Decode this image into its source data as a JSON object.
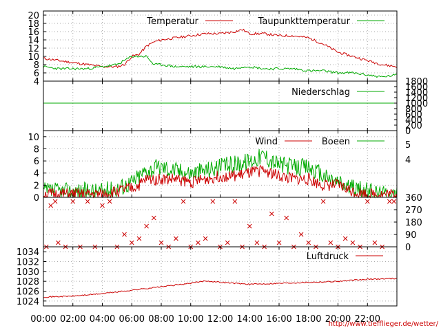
{
  "colors": {
    "red": "#cc0000",
    "green": "#00aa00",
    "grid": "#aaaaaa",
    "axis": "#000000",
    "footer": "#cc0000"
  },
  "footer_text": "http://www.tiefflieger.de/wetter/",
  "chart_data": [
    {
      "id": "temperature",
      "type": "line",
      "title": "",
      "xlabel": "",
      "ylabel": "",
      "ylim": [
        4,
        21
      ],
      "y_ticks": [
        4,
        6,
        8,
        10,
        12,
        14,
        16,
        18,
        20
      ],
      "grid": true,
      "legend_placement": "top",
      "x": [
        0,
        1,
        2,
        3,
        4,
        5,
        5.5,
        6,
        6.5,
        7,
        7.5,
        8,
        9,
        10,
        11,
        12,
        13,
        13.5,
        14,
        15,
        16,
        17,
        18,
        19,
        20,
        21,
        22,
        23,
        24
      ],
      "series": [
        {
          "name": "Temperatur",
          "color": "#cc0000",
          "values": [
            9.5,
            9,
            8.5,
            8,
            7.5,
            7.5,
            8,
            10,
            10.5,
            12.5,
            13.5,
            14,
            14.5,
            15,
            15.5,
            15.5,
            16,
            16.5,
            15.5,
            15.5,
            15,
            15,
            14.5,
            13,
            11,
            10,
            9,
            8,
            7.5
          ]
        },
        {
          "name": "Taupunkttemperatur",
          "color": "#00aa00",
          "values": [
            7.5,
            7,
            7,
            7,
            7.5,
            8,
            9,
            10,
            10,
            10,
            8,
            8,
            7.5,
            7.5,
            7.5,
            7.5,
            7,
            7.5,
            7.5,
            7,
            7,
            7,
            6.5,
            6.5,
            6,
            6,
            5.5,
            5,
            5.5
          ]
        }
      ]
    },
    {
      "id": "precipitation",
      "type": "line",
      "title": "",
      "ylim": [
        0,
        1800
      ],
      "y_ticks": [
        0,
        200,
        400,
        600,
        800,
        1000,
        1200,
        1400,
        1600,
        1800
      ],
      "grid": false,
      "legend_placement": "top",
      "x": [
        0,
        24
      ],
      "series": [
        {
          "name": "Niederschlag",
          "color": "#00aa00",
          "values": [
            1000,
            1000
          ]
        }
      ]
    },
    {
      "id": "wind",
      "type": "line",
      "title": "",
      "ylim": [
        0,
        11
      ],
      "y_ticks": [
        0,
        2,
        4,
        6,
        8,
        10
      ],
      "grid": true,
      "legend_placement": "top",
      "right_axis_labels": [
        "5",
        "4"
      ],
      "x": [
        0,
        1,
        2,
        3,
        4,
        5,
        6,
        6.5,
        7,
        8,
        9,
        10,
        11,
        12,
        13,
        14,
        15,
        15.5,
        16,
        17,
        18,
        19,
        20,
        21,
        22,
        23,
        24
      ],
      "series": [
        {
          "name": "Wind",
          "color": "#cc0000",
          "values": [
            0.5,
            0.5,
            0.5,
            0.5,
            0.5,
            1,
            1.5,
            2,
            3,
            3,
            3,
            2.5,
            3,
            3.5,
            3.5,
            4,
            4.5,
            4,
            3.5,
            3,
            3,
            2,
            2,
            1,
            0.5,
            0.5,
            0.5
          ]
        },
        {
          "name": "Boeen",
          "color": "#00aa00",
          "values": [
            1,
            1,
            1,
            1,
            1,
            1.5,
            2.5,
            3.5,
            4.5,
            5,
            4.5,
            4,
            4.5,
            5,
            5.5,
            6,
            7,
            6,
            5.5,
            5,
            5,
            3.5,
            2.5,
            1.5,
            1,
            0.5,
            0.5
          ]
        }
      ]
    },
    {
      "id": "wind-direction",
      "type": "scatter",
      "title": "",
      "ylim": [
        0,
        360
      ],
      "y_ticks": [
        0,
        90,
        180,
        270,
        360
      ],
      "grid": true,
      "legend_placement": "none",
      "x": [
        0.2,
        0.5,
        0.8,
        1,
        1.5,
        2,
        2.5,
        3,
        3.5,
        4,
        4.5,
        5,
        5.5,
        6,
        6.5,
        7,
        7.5,
        8,
        8.5,
        9,
        9.5,
        10,
        10.5,
        11,
        11.5,
        12,
        12.5,
        13,
        13.5,
        14,
        14.5,
        15,
        15.5,
        16,
        16.5,
        17,
        17.5,
        18,
        18.5,
        19,
        19.5,
        20,
        20.5,
        21,
        21.5,
        22,
        22.5,
        23,
        23.5,
        23.8
      ],
      "series": [
        {
          "name": "",
          "color": "#cc0000",
          "values": [
            0,
            300,
            330,
            30,
            0,
            330,
            0,
            330,
            0,
            300,
            330,
            0,
            90,
            30,
            60,
            150,
            210,
            30,
            0,
            60,
            330,
            0,
            30,
            60,
            330,
            0,
            30,
            330,
            0,
            150,
            30,
            0,
            240,
            30,
            210,
            0,
            90,
            30,
            0,
            330,
            30,
            0,
            60,
            30,
            0,
            330,
            30,
            0,
            330,
            330
          ]
        }
      ]
    },
    {
      "id": "pressure",
      "type": "line",
      "title": "",
      "ylim": [
        1023,
        1035
      ],
      "y_ticks": [
        1024,
        1026,
        1028,
        1030,
        1032,
        1034
      ],
      "x_ticks": [
        "00:00",
        "02:00",
        "04:00",
        "06:00",
        "08:00",
        "10:00",
        "12:00",
        "14:00",
        "16:00",
        "18:00",
        "20:00",
        "22:00"
      ],
      "grid": true,
      "legend_placement": "top-right",
      "x": [
        0,
        2,
        4,
        6,
        8,
        10,
        11,
        12,
        14,
        16,
        18,
        20,
        22,
        24
      ],
      "series": [
        {
          "name": "Luftdruck",
          "color": "#cc0000",
          "values": [
            1024.8,
            1025,
            1025.5,
            1026.2,
            1026.9,
            1027.6,
            1028.1,
            1027.8,
            1027.4,
            1027.6,
            1027.8,
            1028,
            1028.4,
            1028.6
          ]
        }
      ]
    }
  ]
}
